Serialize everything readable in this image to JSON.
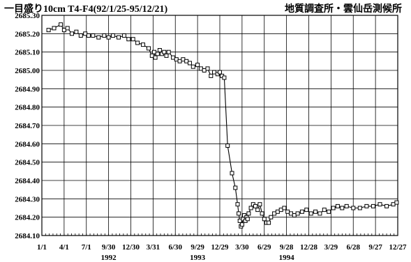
{
  "chart_data": {
    "type": "line",
    "title": "一目盛り10cm T4-F4(92/1/25-95/12/21)",
    "source": "地質調査所・雲仙岳測候所",
    "ylim": [
      2684.1,
      2685.3
    ],
    "y_ticks": [
      "2684.10",
      "2684.20",
      "2684.30",
      "2684.40",
      "2684.50",
      "2684.60",
      "2684.70",
      "2684.80",
      "2684.90",
      "2685.00",
      "2685.10",
      "2685.20",
      "2685.30"
    ],
    "x_ticks": [
      "1/1",
      "4/1",
      "7/1",
      "9/30",
      "12/30",
      "3/31",
      "6/30",
      "9/29",
      "12/29",
      "3/30",
      "6/29",
      "9/28",
      "12/28",
      "3/29",
      "6/28",
      "9/27",
      "12/27"
    ],
    "year_labels": [
      "1992",
      "1993",
      "1994"
    ],
    "grid": true,
    "series": [
      {
        "marker": "square",
        "x": [
          0.3,
          0.55,
          0.85,
          1.0,
          1.15,
          1.35,
          1.55,
          1.75,
          1.95,
          2.1,
          2.3,
          2.55,
          2.8,
          3.0,
          3.2,
          3.45,
          3.7,
          3.9,
          4.1,
          4.3,
          4.55,
          4.8,
          4.95,
          5.05,
          5.1,
          5.2,
          5.3,
          5.4,
          5.5,
          5.6,
          5.7,
          5.9,
          6.05,
          6.2,
          6.35,
          6.5,
          6.65,
          6.8,
          7.0,
          7.15,
          7.3,
          7.45,
          7.6,
          7.75,
          7.9,
          8.0,
          8.1,
          8.2,
          8.35,
          8.55,
          8.7,
          8.8,
          8.85,
          8.9,
          8.95,
          9.0,
          9.05,
          9.1,
          9.15,
          9.2,
          9.25,
          9.3,
          9.4,
          9.5,
          9.6,
          9.7,
          9.8,
          9.9,
          10.0,
          10.1,
          10.2,
          10.3,
          10.45,
          10.6,
          10.75,
          10.9,
          11.05,
          11.2,
          11.35,
          11.5,
          11.7,
          11.9,
          12.1,
          12.3,
          12.5,
          12.7,
          12.9,
          13.1,
          13.3,
          13.5,
          13.7,
          14.0,
          14.3,
          14.6,
          14.9,
          15.2,
          15.5,
          15.8,
          15.95
        ],
        "y": [
          2685.22,
          2685.23,
          2685.25,
          2685.22,
          2685.23,
          2685.2,
          2685.21,
          2685.19,
          2685.2,
          2685.19,
          2685.19,
          2685.18,
          2685.19,
          2685.18,
          2685.19,
          2685.18,
          2685.19,
          2685.17,
          2685.17,
          2685.15,
          2685.14,
          2685.12,
          2685.08,
          2685.1,
          2685.07,
          2685.09,
          2685.11,
          2685.09,
          2685.1,
          2685.08,
          2685.1,
          2685.07,
          2685.06,
          2685.05,
          2685.06,
          2685.05,
          2685.04,
          2685.02,
          2685.03,
          2685.01,
          2685.0,
          2685.01,
          2684.97,
          2684.99,
          2684.98,
          2684.99,
          2684.97,
          2684.96,
          2684.59,
          2684.44,
          2684.36,
          2684.27,
          2684.22,
          2684.18,
          2684.15,
          2684.16,
          2684.19,
          2684.21,
          2684.18,
          2684.2,
          2684.19,
          2684.22,
          2684.25,
          2684.27,
          2684.26,
          2684.24,
          2684.27,
          2684.22,
          2684.19,
          2684.17,
          2684.17,
          2684.2,
          2684.22,
          2684.23,
          2684.24,
          2684.25,
          2684.23,
          2684.22,
          2684.21,
          2684.22,
          2684.23,
          2684.24,
          2684.22,
          2684.23,
          2684.22,
          2684.24,
          2684.23,
          2684.25,
          2684.26,
          2684.25,
          2684.26,
          2684.25,
          2684.25,
          2684.26,
          2684.26,
          2684.27,
          2684.26,
          2684.27,
          2684.28
        ]
      }
    ]
  }
}
